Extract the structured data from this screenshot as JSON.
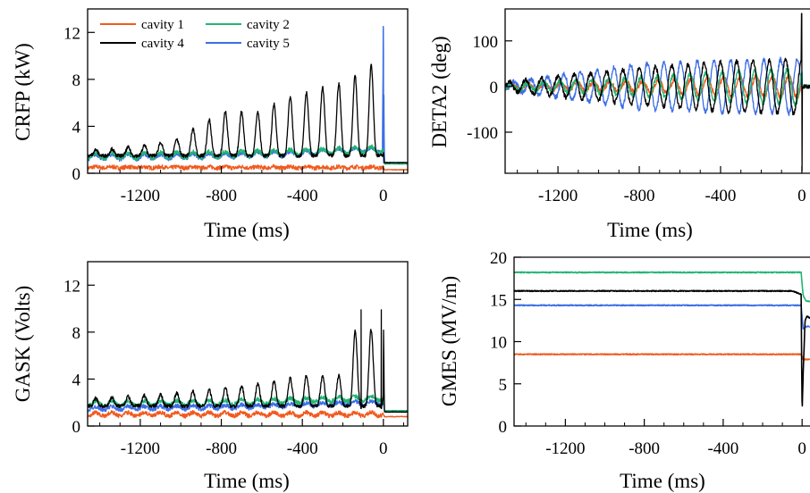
{
  "colors": {
    "cavity 1": "#f05a1e",
    "cavity 2": "#22b573",
    "cavity 4": "#000000",
    "cavity 5": "#3c6ee6"
  },
  "chart_data": [
    {
      "id": "crfp",
      "type": "line",
      "xlabel": "Time (ms)",
      "ylabel": "CRFP (kW)",
      "xlim": [
        -1460,
        120
      ],
      "ylim": [
        0,
        14
      ],
      "xticks": [
        -1200,
        -800,
        -400,
        0
      ],
      "yticks": [
        0,
        4,
        8,
        12
      ],
      "legend": {
        "placement": "top-left",
        "entries": [
          "cavity 1",
          "cavity 2",
          "cavity 4",
          "cavity 5"
        ]
      },
      "series": [
        {
          "name": "cavity 1",
          "key": "cavity 1",
          "desc": "flat ~0.5 kW, drops to ~0.3 kW after 0 ms",
          "x": [
            -1460,
            -1200,
            -800,
            -400,
            0,
            5,
            120
          ],
          "y": [
            0.5,
            0.5,
            0.5,
            0.5,
            0.5,
            0.3,
            0.3
          ]
        },
        {
          "name": "cavity 2",
          "key": "cavity 2",
          "desc": "base ~1.5 kW with small oscillations growing to ~2 kW",
          "x": [
            -1460,
            -1200,
            -800,
            -400,
            -100,
            0,
            5,
            120
          ],
          "y": [
            1.5,
            1.5,
            1.6,
            1.8,
            2.0,
            2.0,
            0.8,
            0.8
          ]
        },
        {
          "name": "cavity 4",
          "key": "cavity 4",
          "desc": "base ~1.5 kW with growing oscillation peaks",
          "x": [
            -1380,
            -1200,
            -1000,
            -920,
            -780,
            -620,
            -480,
            -400,
            -300,
            -230,
            -160,
            -110,
            -60,
            -20,
            0,
            5,
            120
          ],
          "y": [
            2.0,
            2.3,
            3.0,
            4.0,
            5.3,
            5.2,
            6.4,
            6.8,
            7.3,
            7.6,
            7.9,
            8.9,
            9.3,
            9.1,
            2.0,
            0.9,
            0.9
          ]
        },
        {
          "name": "cavity 5",
          "key": "cavity 5",
          "desc": "base ~1.4 kW, spike to ~12.5 kW at 0 ms",
          "x": [
            -1460,
            -1200,
            -800,
            -400,
            -100,
            -5,
            0,
            5,
            120
          ],
          "y": [
            1.4,
            1.4,
            1.5,
            1.7,
            2.0,
            2.0,
            12.5,
            0.9,
            0.9
          ]
        }
      ]
    },
    {
      "id": "deta2",
      "type": "line",
      "xlabel": "Time (ms)",
      "ylabel": "DETA2 (deg)",
      "xlim": [
        -1460,
        40
      ],
      "ylim": [
        -190,
        170
      ],
      "xticks": [
        -1200,
        -800,
        -400,
        0
      ],
      "yticks": [
        -100,
        0,
        100
      ],
      "series": [
        {
          "key": "cavity 1",
          "x": [
            -1460,
            -800,
            -400,
            0
          ],
          "y_amp": [
            5,
            12,
            20,
            25
          ]
        },
        {
          "key": "cavity 2",
          "x": [
            -1460,
            -800,
            -400,
            0
          ],
          "y_amp": [
            5,
            20,
            32,
            40
          ]
        },
        {
          "key": "cavity 4",
          "x": [
            -1460,
            -800,
            -400,
            -10,
            0,
            10
          ],
          "y_amp": [
            10,
            40,
            55,
            60,
            160,
            0
          ],
          "y_min": -185
        },
        {
          "key": "cavity 5",
          "x": [
            -1460,
            -800,
            -400,
            0
          ],
          "y_amp": [
            8,
            50,
            58,
            60
          ]
        }
      ]
    },
    {
      "id": "gask",
      "type": "line",
      "xlabel": "Time (ms)",
      "ylabel": "GASK (Volts)",
      "xlim": [
        -1460,
        120
      ],
      "ylim": [
        0,
        14
      ],
      "xticks": [
        -1200,
        -800,
        -400,
        0
      ],
      "yticks": [
        0,
        4,
        8,
        12
      ],
      "series": [
        {
          "key": "cavity 1",
          "x": [
            -1460,
            0,
            5,
            120
          ],
          "y": [
            1.0,
            1.0,
            0.8,
            0.8
          ]
        },
        {
          "key": "cavity 2",
          "x": [
            -1460,
            -800,
            -400,
            0,
            5,
            120
          ],
          "y": [
            1.9,
            2.0,
            2.2,
            2.4,
            1.3,
            1.3
          ]
        },
        {
          "key": "cavity 4",
          "x": [
            -1460,
            -1000,
            -800,
            -600,
            -400,
            -200,
            -110,
            -50,
            -10,
            0,
            5,
            120
          ],
          "y": [
            2.3,
            2.8,
            3.2,
            3.6,
            4.3,
            4.3,
            9.9,
            7.9,
            9.9,
            9.9,
            1.2,
            1.2
          ]
        },
        {
          "key": "cavity 5",
          "x": [
            -1460,
            -800,
            -400,
            0,
            5,
            120
          ],
          "y": [
            1.5,
            1.6,
            1.8,
            2.0,
            1.3,
            1.3
          ]
        }
      ]
    },
    {
      "id": "gmes",
      "type": "line",
      "xlabel": "Time (ms)",
      "ylabel": "GMES (MV/m)",
      "xlim": [
        -1460,
        40
      ],
      "ylim": [
        0,
        20
      ],
      "xticks": [
        -1200,
        -800,
        -400,
        0
      ],
      "yticks": [
        0,
        5,
        10,
        15,
        20
      ],
      "series": [
        {
          "key": "cavity 1",
          "x": [
            -1460,
            -5,
            5,
            20,
            40
          ],
          "y": [
            8.5,
            8.5,
            7.9,
            7.9,
            7.9
          ]
        },
        {
          "key": "cavity 2",
          "x": [
            -1460,
            -5,
            5,
            20,
            40
          ],
          "y": [
            18.2,
            18.2,
            15.5,
            14.8,
            14.8
          ]
        },
        {
          "key": "cavity 4",
          "x": [
            -1460,
            -50,
            -5,
            0,
            5,
            15,
            25,
            40
          ],
          "y": [
            16.0,
            16.0,
            15.6,
            1.5,
            6.0,
            12.5,
            13.0,
            12.8
          ]
        },
        {
          "key": "cavity 5",
          "x": [
            -1460,
            -5,
            5,
            20,
            40
          ],
          "y": [
            14.3,
            14.3,
            11.5,
            11.8,
            11.8
          ]
        }
      ]
    }
  ]
}
